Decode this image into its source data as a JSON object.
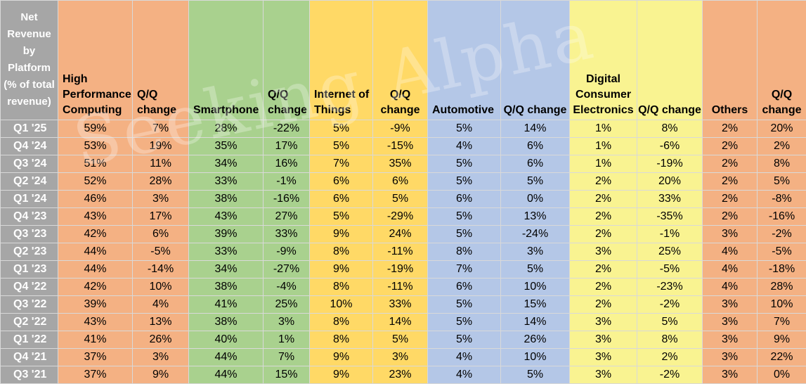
{
  "chart_data": {
    "type": "table",
    "corner_header": "Net Revenue by Platform (% of total revenue)",
    "columns": [
      {
        "label": "High Performance Computing",
        "color": "#f4b183",
        "align": "left"
      },
      {
        "label": "Q/Q change",
        "color": "#f4b183",
        "align": "left"
      },
      {
        "label": "Smartphone",
        "color": "#a9d18e",
        "align": "left"
      },
      {
        "label": "Q/Q change",
        "color": "#a9d18e",
        "align": "left"
      },
      {
        "label": "Internet of Things",
        "color": "#ffd966",
        "align": "left"
      },
      {
        "label": "Q/Q change",
        "color": "#ffd966",
        "align": "center"
      },
      {
        "label": "Automotive",
        "color": "#b4c7e7",
        "align": "left"
      },
      {
        "label": "Q/Q change",
        "color": "#b4c7e7",
        "align": "center"
      },
      {
        "label": "Digital Consumer Electronics",
        "color": "#f9f391",
        "align": "center"
      },
      {
        "label": "Q/Q change",
        "color": "#f9f391",
        "align": "center"
      },
      {
        "label": "Others",
        "color": "#f4b183",
        "align": "center"
      },
      {
        "label": "Q/Q change",
        "color": "#f4b183",
        "align": "center"
      }
    ],
    "rows": [
      {
        "quarter": "Q1 '25",
        "values": [
          "59%",
          "7%",
          "28%",
          "-22%",
          "5%",
          "-9%",
          "5%",
          "14%",
          "1%",
          "8%",
          "2%",
          "20%"
        ]
      },
      {
        "quarter": "Q4 '24",
        "values": [
          "53%",
          "19%",
          "35%",
          "17%",
          "5%",
          "-15%",
          "4%",
          "6%",
          "1%",
          "-6%",
          "2%",
          "2%"
        ]
      },
      {
        "quarter": "Q3 '24",
        "values": [
          "51%",
          "11%",
          "34%",
          "16%",
          "7%",
          "35%",
          "5%",
          "6%",
          "1%",
          "-19%",
          "2%",
          "8%"
        ]
      },
      {
        "quarter": "Q2 '24",
        "values": [
          "52%",
          "28%",
          "33%",
          "-1%",
          "6%",
          "6%",
          "5%",
          "5%",
          "2%",
          "20%",
          "2%",
          "5%"
        ]
      },
      {
        "quarter": "Q1 '24",
        "values": [
          "46%",
          "3%",
          "38%",
          "-16%",
          "6%",
          "5%",
          "6%",
          "0%",
          "2%",
          "33%",
          "2%",
          "-8%"
        ]
      },
      {
        "quarter": "Q4 '23",
        "values": [
          "43%",
          "17%",
          "43%",
          "27%",
          "5%",
          "-29%",
          "5%",
          "13%",
          "2%",
          "-35%",
          "2%",
          "-16%"
        ]
      },
      {
        "quarter": "Q3 '23",
        "values": [
          "42%",
          "6%",
          "39%",
          "33%",
          "9%",
          "24%",
          "5%",
          "-24%",
          "2%",
          "-1%",
          "3%",
          "-2%"
        ]
      },
      {
        "quarter": "Q2 '23",
        "values": [
          "44%",
          "-5%",
          "33%",
          "-9%",
          "8%",
          "-11%",
          "8%",
          "3%",
          "3%",
          "25%",
          "4%",
          "-5%"
        ]
      },
      {
        "quarter": "Q1 '23",
        "values": [
          "44%",
          "-14%",
          "34%",
          "-27%",
          "9%",
          "-19%",
          "7%",
          "5%",
          "2%",
          "-5%",
          "4%",
          "-18%"
        ]
      },
      {
        "quarter": "Q4 '22",
        "values": [
          "42%",
          "10%",
          "38%",
          "-4%",
          "8%",
          "-11%",
          "6%",
          "10%",
          "2%",
          "-23%",
          "4%",
          "28%"
        ]
      },
      {
        "quarter": "Q3 '22",
        "values": [
          "39%",
          "4%",
          "41%",
          "25%",
          "10%",
          "33%",
          "5%",
          "15%",
          "2%",
          "-2%",
          "3%",
          "10%"
        ]
      },
      {
        "quarter": "Q2 '22",
        "values": [
          "43%",
          "13%",
          "38%",
          "3%",
          "8%",
          "14%",
          "5%",
          "14%",
          "3%",
          "5%",
          "3%",
          "7%"
        ]
      },
      {
        "quarter": "Q1 '22",
        "values": [
          "41%",
          "26%",
          "40%",
          "1%",
          "8%",
          "5%",
          "5%",
          "26%",
          "3%",
          "8%",
          "3%",
          "9%"
        ]
      },
      {
        "quarter": "Q4 '21",
        "values": [
          "37%",
          "3%",
          "44%",
          "7%",
          "9%",
          "3%",
          "4%",
          "10%",
          "3%",
          "2%",
          "3%",
          "22%"
        ]
      },
      {
        "quarter": "Q3 '21",
        "values": [
          "37%",
          "9%",
          "44%",
          "15%",
          "9%",
          "23%",
          "4%",
          "5%",
          "3%",
          "-2%",
          "3%",
          "0%"
        ]
      }
    ],
    "watermark": "Seeking Alpha",
    "label_column_color": "#a6a6a6"
  }
}
